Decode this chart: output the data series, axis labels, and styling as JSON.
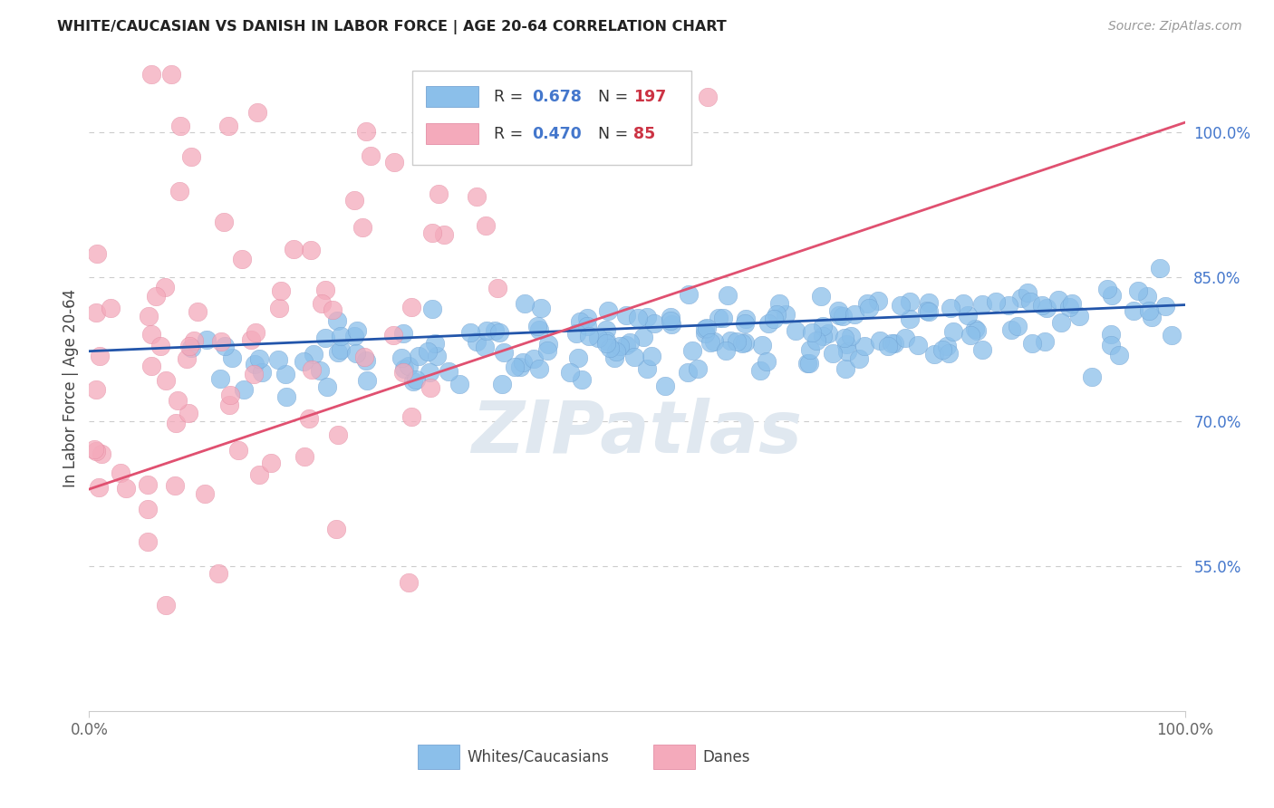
{
  "title": "WHITE/CAUCASIAN VS DANISH IN LABOR FORCE | AGE 20-64 CORRELATION CHART",
  "source": "Source: ZipAtlas.com",
  "ylabel": "In Labor Force | Age 20-64",
  "xlim": [
    0.0,
    1.0
  ],
  "ylim": [
    0.4,
    1.07
  ],
  "yticks": [
    0.55,
    0.7,
    0.85,
    1.0
  ],
  "ytick_labels": [
    "55.0%",
    "70.0%",
    "85.0%",
    "100.0%"
  ],
  "xtick_labels": [
    "0.0%",
    "100.0%"
  ],
  "blue_color": "#8BBFEA",
  "pink_color": "#F4AABB",
  "blue_edge_color": "#6699CC",
  "pink_edge_color": "#E0809A",
  "blue_line_color": "#2255AA",
  "pink_line_color": "#E05070",
  "blue_R": 0.678,
  "blue_N": 197,
  "pink_R": 0.47,
  "pink_N": 85,
  "legend_R_color": "#4477CC",
  "legend_N_color": "#CC3344",
  "background_color": "#FFFFFF",
  "grid_color": "#CCCCCC",
  "title_color": "#222222",
  "axis_label_color": "#4477CC",
  "blue_seed": 42,
  "pink_seed": 7
}
